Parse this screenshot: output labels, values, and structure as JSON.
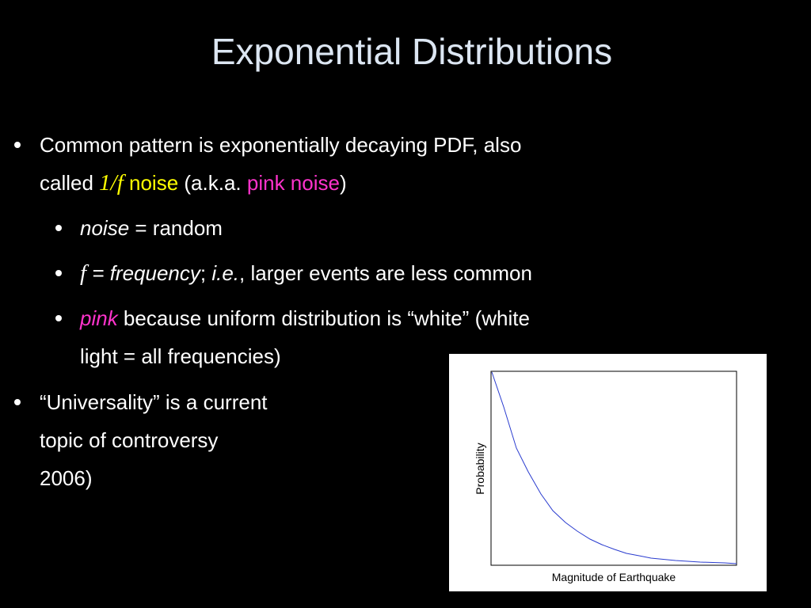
{
  "title": "Exponential Distributions",
  "bullets": [
    {
      "line1": "Common pattern is exponentially decaying PDF, also",
      "line2": [
        "called ",
        "1/f",
        " noise",
        " (a.k.a. ",
        "pink noise",
        ")"
      ],
      "sub": [
        [
          "noise",
          " = random"
        ],
        [
          "f",
          " = frequency",
          "; ",
          "i.e.",
          ", larger events are less common"
        ],
        {
          "line1": [
            "pink",
            " because uniform distribution is “white” (white"
          ],
          "line2": "light = all frequencies)"
        }
      ]
    },
    {
      "lines": [
        "“Universality” is a current",
        "topic of controversy",
        "2006)"
      ]
    }
  ],
  "figure": {
    "y_label": "Probability",
    "x_label": "Magnitude of Earthquake"
  }
}
